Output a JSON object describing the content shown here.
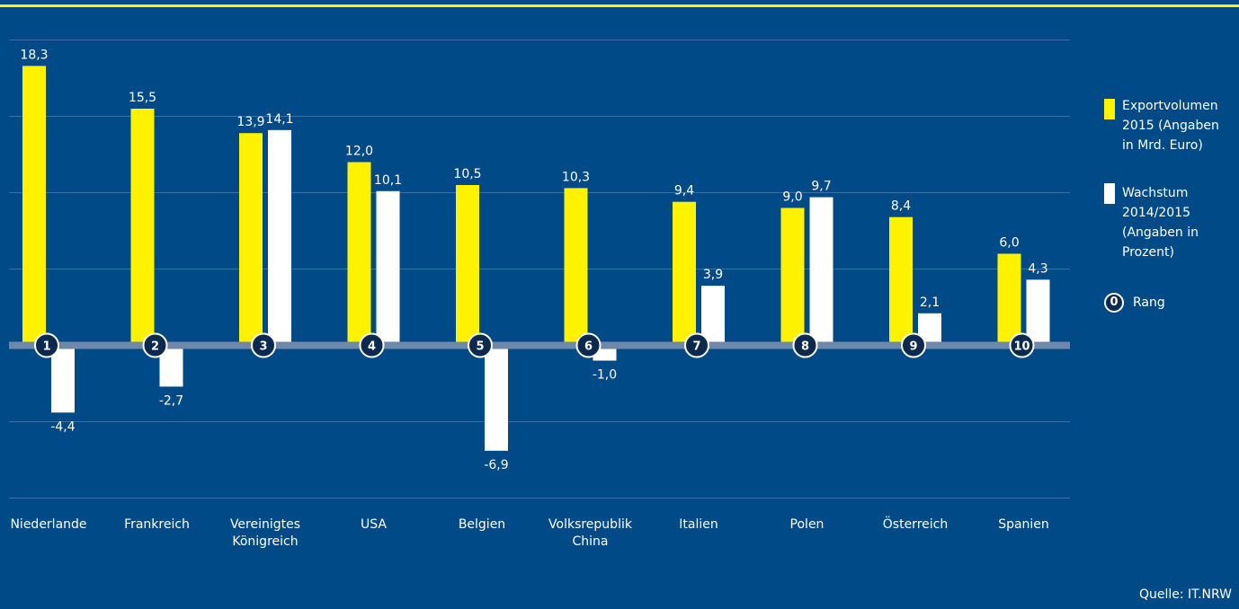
{
  "chart_data": {
    "type": "bar",
    "categories": [
      "Niederlande",
      "Frankreich",
      "Vereinigtes\nKönigreich",
      "USA",
      "Belgien",
      "Volksrepublik\nChina",
      "Italien",
      "Polen",
      "Österreich",
      "Spanien"
    ],
    "ranks": [
      "1",
      "2",
      "3",
      "4",
      "5",
      "6",
      "7",
      "8",
      "9",
      "10"
    ],
    "series": [
      {
        "name": "Exportvolumen 2015 (Angaben in Mrd. Euro)",
        "color": "#fff200",
        "values": [
          18.3,
          15.5,
          13.9,
          12.0,
          10.5,
          10.3,
          9.4,
          9.0,
          8.4,
          6.0
        ],
        "labels": [
          "18,3",
          "15,5",
          "13,9",
          "12,0",
          "10,5",
          "10,3",
          "9,4",
          "9,0",
          "8,4",
          "6,0"
        ]
      },
      {
        "name": "Wachstum 2014/2015 (Angaben in Prozent)",
        "color": "#ffffff",
        "values": [
          -4.4,
          -2.7,
          14.1,
          10.1,
          -6.9,
          -1.0,
          3.9,
          9.7,
          2.1,
          4.3
        ],
        "labels": [
          "-4,4",
          "-2,7",
          "14,1",
          "10,1",
          "-6,9",
          "-1,0",
          "3,9",
          "9,7",
          "2,1",
          "4,3"
        ]
      }
    ],
    "ylim": [
      -10,
      20
    ],
    "grid": true,
    "legend_position": "right"
  },
  "legend": {
    "export_label": "Exportvolumen\n2015 (Angaben\nin Mrd. Euro)",
    "growth_label": "Wachstum\n2014/2015\n(Angaben in\nProzent)",
    "rank_symbol": "0",
    "rank_label": "Rang"
  },
  "source": "Quelle: IT.NRW",
  "colors": {
    "background": "#004b87",
    "accent": "#fff200",
    "baseline": "#6f87a8",
    "rank_circle": "#0c2a4f"
  }
}
